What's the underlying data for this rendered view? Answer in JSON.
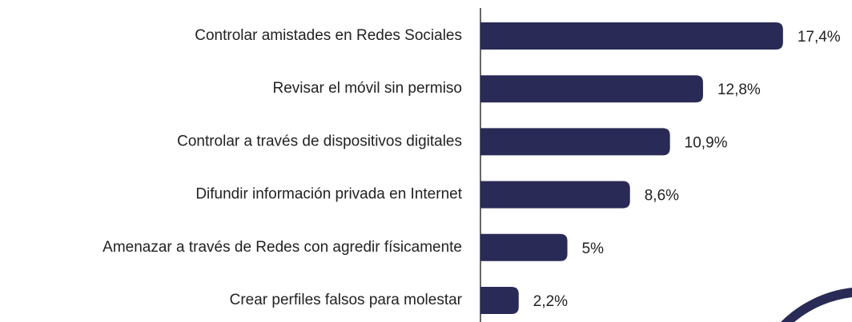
{
  "chart_data": {
    "type": "bar",
    "orientation": "horizontal",
    "categories": [
      "Controlar amistades en Redes Sociales",
      "Revisar el móvil sin permiso",
      "Controlar a través de dispositivos digitales",
      "Difundir información privada en Internet",
      "Amenazar a través de Redes con agredir físicamente",
      "Crear perfiles falsos para molestar"
    ],
    "values": [
      17.4,
      12.8,
      10.9,
      8.6,
      5,
      2.2
    ],
    "value_labels": [
      "17,4%",
      "12,8%",
      "10,9%",
      "8,6%",
      "5%",
      "2,2%"
    ],
    "color": "#2a2a57",
    "xlim": [
      0,
      21
    ]
  }
}
